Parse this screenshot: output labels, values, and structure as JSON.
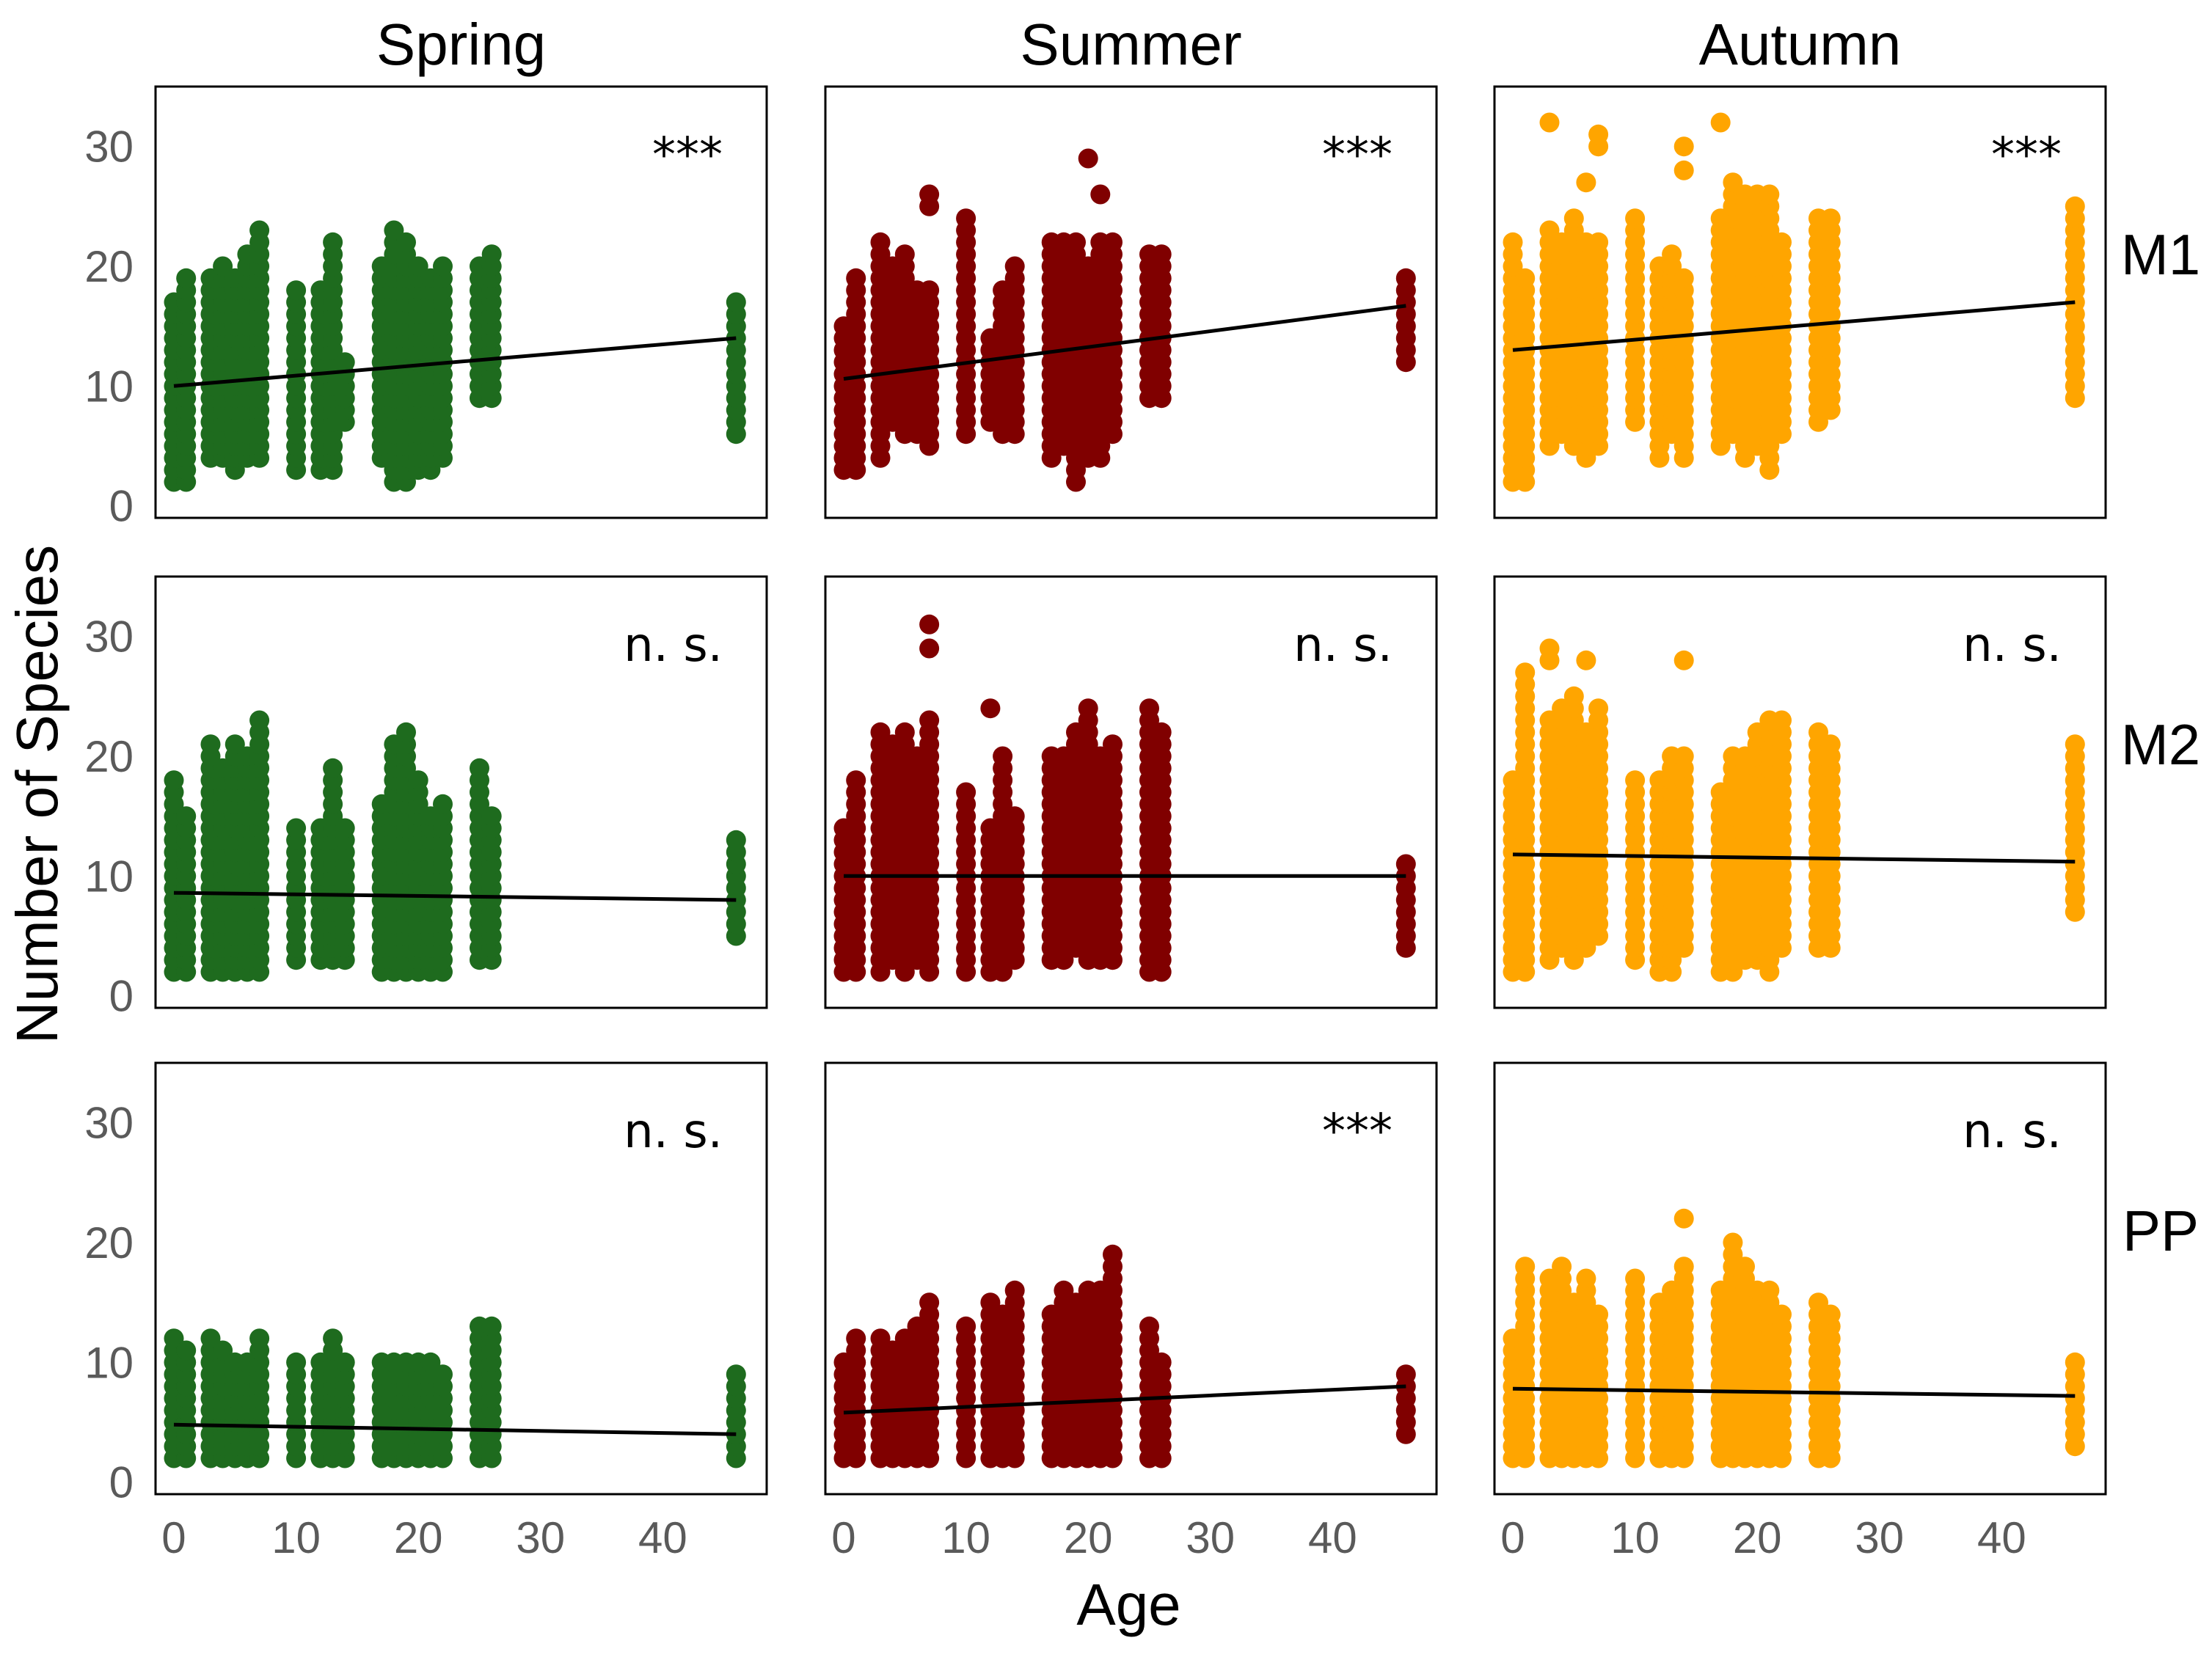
{
  "chart_data": {
    "type": "scatter",
    "title": "",
    "xlabel": "Age",
    "ylabel": "Number of Species",
    "xlim": [
      -1.5,
      48.5
    ],
    "ylim": [
      -1,
      35
    ],
    "x_ticks": [
      0,
      10,
      20,
      30,
      40
    ],
    "y_ticks": [
      0,
      10,
      20,
      30
    ],
    "columns": [
      {
        "name": "Spring",
        "color": "#1e6b1e"
      },
      {
        "name": "Summer",
        "color": "#800000"
      },
      {
        "name": "Autumn",
        "color": "#ffa500"
      }
    ],
    "rows": [
      "M1",
      "M2",
      "PP"
    ],
    "point_ages": [
      0,
      1,
      3,
      4,
      5,
      6,
      7,
      10,
      12,
      13,
      14,
      17,
      18,
      19,
      20,
      21,
      22,
      25,
      26,
      46
    ],
    "panels": [
      {
        "column": "Spring",
        "row": "M1",
        "significance": "***",
        "trend": [
          {
            "x": 0,
            "y": 10.0
          },
          {
            "x": 46,
            "y": 14.0
          }
        ],
        "ranges": [
          [
            2,
            17
          ],
          [
            2,
            19
          ],
          [
            4,
            19
          ],
          [
            4,
            20
          ],
          [
            3,
            19
          ],
          [
            4,
            21
          ],
          [
            4,
            23
          ],
          [
            3,
            18
          ],
          [
            3,
            18
          ],
          [
            3,
            22
          ],
          [
            7,
            12
          ],
          [
            4,
            20
          ],
          [
            2,
            23
          ],
          [
            2,
            22
          ],
          [
            3,
            20
          ],
          [
            3,
            19
          ],
          [
            4,
            20
          ],
          [
            9,
            20
          ],
          [
            9,
            21
          ],
          [
            6,
            17
          ]
        ],
        "outliers": []
      },
      {
        "column": "Summer",
        "row": "M1",
        "significance": "***",
        "trend": [
          {
            "x": 0,
            "y": 10.6
          },
          {
            "x": 46,
            "y": 16.7
          }
        ],
        "ranges": [
          [
            3,
            15
          ],
          [
            3,
            19
          ],
          [
            4,
            22
          ],
          [
            7,
            20
          ],
          [
            6,
            21
          ],
          [
            6,
            18
          ],
          [
            5,
            18
          ],
          [
            6,
            24
          ],
          [
            7,
            14
          ],
          [
            6,
            18
          ],
          [
            6,
            20
          ],
          [
            4,
            22
          ],
          [
            5,
            22
          ],
          [
            2,
            22
          ],
          [
            4,
            20
          ],
          [
            4,
            22
          ],
          [
            6,
            22
          ],
          [
            9,
            21
          ],
          [
            9,
            21
          ],
          [
            12,
            19
          ]
        ],
        "outliers": [
          {
            "x": 7,
            "y": 25
          },
          {
            "x": 7,
            "y": 26
          },
          {
            "x": 20,
            "y": 29
          },
          {
            "x": 21,
            "y": 26
          }
        ]
      },
      {
        "column": "Autumn",
        "row": "M1",
        "significance": "***",
        "trend": [
          {
            "x": 0,
            "y": 13.0
          },
          {
            "x": 46,
            "y": 17.0
          }
        ],
        "ranges": [
          [
            2,
            22
          ],
          [
            2,
            19
          ],
          [
            5,
            23
          ],
          [
            6,
            22
          ],
          [
            5,
            24
          ],
          [
            4,
            22
          ],
          [
            5,
            22
          ],
          [
            7,
            24
          ],
          [
            4,
            20
          ],
          [
            6,
            21
          ],
          [
            4,
            19
          ],
          [
            5,
            24
          ],
          [
            6,
            27
          ],
          [
            4,
            26
          ],
          [
            5,
            26
          ],
          [
            3,
            26
          ],
          [
            6,
            22
          ],
          [
            7,
            24
          ],
          [
            8,
            24
          ],
          [
            9,
            25
          ]
        ],
        "outliers": [
          {
            "x": 3,
            "y": 32
          },
          {
            "x": 6,
            "y": 27
          },
          {
            "x": 7,
            "y": 30
          },
          {
            "x": 7,
            "y": 31
          },
          {
            "x": 14,
            "y": 30
          },
          {
            "x": 14,
            "y": 28
          },
          {
            "x": 17,
            "y": 32
          }
        ]
      },
      {
        "column": "Spring",
        "row": "M2",
        "significance": "n. s.",
        "trend": [
          {
            "x": 0,
            "y": 8.6
          },
          {
            "x": 46,
            "y": 8.0
          }
        ],
        "ranges": [
          [
            2,
            18
          ],
          [
            2,
            15
          ],
          [
            2,
            21
          ],
          [
            2,
            19
          ],
          [
            2,
            21
          ],
          [
            2,
            20
          ],
          [
            2,
            22
          ],
          [
            3,
            14
          ],
          [
            3,
            14
          ],
          [
            3,
            19
          ],
          [
            3,
            14
          ],
          [
            2,
            16
          ],
          [
            2,
            21
          ],
          [
            2,
            22
          ],
          [
            2,
            18
          ],
          [
            2,
            15
          ],
          [
            2,
            16
          ],
          [
            3,
            19
          ],
          [
            3,
            15
          ],
          [
            5,
            13
          ]
        ],
        "outliers": [
          {
            "x": 7,
            "y": 23
          }
        ]
      },
      {
        "column": "Summer",
        "row": "M2",
        "significance": "n. s.",
        "trend": [
          {
            "x": 0,
            "y": 10.0
          },
          {
            "x": 46,
            "y": 10.0
          }
        ],
        "ranges": [
          [
            2,
            14
          ],
          [
            2,
            18
          ],
          [
            2,
            22
          ],
          [
            3,
            21
          ],
          [
            2,
            22
          ],
          [
            3,
            20
          ],
          [
            2,
            23
          ],
          [
            2,
            17
          ],
          [
            2,
            14
          ],
          [
            2,
            20
          ],
          [
            3,
            15
          ],
          [
            3,
            20
          ],
          [
            3,
            20
          ],
          [
            4,
            22
          ],
          [
            3,
            24
          ],
          [
            3,
            20
          ],
          [
            3,
            21
          ],
          [
            2,
            24
          ],
          [
            2,
            22
          ],
          [
            4,
            11
          ]
        ],
        "outliers": [
          {
            "x": 7,
            "y": 31
          },
          {
            "x": 7,
            "y": 29
          },
          {
            "x": 12,
            "y": 24
          }
        ]
      },
      {
        "column": "Autumn",
        "row": "M2",
        "significance": "n. s.",
        "trend": [
          {
            "x": 0,
            "y": 11.8
          },
          {
            "x": 46,
            "y": 11.2
          }
        ],
        "ranges": [
          [
            2,
            18
          ],
          [
            2,
            27
          ],
          [
            3,
            23
          ],
          [
            4,
            24
          ],
          [
            3,
            25
          ],
          [
            4,
            22
          ],
          [
            5,
            24
          ],
          [
            3,
            18
          ],
          [
            2,
            18
          ],
          [
            2,
            20
          ],
          [
            4,
            20
          ],
          [
            2,
            17
          ],
          [
            2,
            20
          ],
          [
            3,
            20
          ],
          [
            3,
            22
          ],
          [
            2,
            23
          ],
          [
            4,
            23
          ],
          [
            4,
            22
          ],
          [
            4,
            21
          ],
          [
            7,
            21
          ]
        ],
        "outliers": [
          {
            "x": 3,
            "y": 29
          },
          {
            "x": 3,
            "y": 28
          },
          {
            "x": 6,
            "y": 28
          },
          {
            "x": 14,
            "y": 28
          }
        ]
      },
      {
        "column": "Spring",
        "row": "PP",
        "significance": "n. s.",
        "trend": [
          {
            "x": 0,
            "y": 4.8
          },
          {
            "x": 46,
            "y": 4.0
          }
        ],
        "ranges": [
          [
            2,
            12
          ],
          [
            2,
            11
          ],
          [
            2,
            12
          ],
          [
            2,
            11
          ],
          [
            2,
            10
          ],
          [
            2,
            10
          ],
          [
            2,
            12
          ],
          [
            2,
            10
          ],
          [
            2,
            10
          ],
          [
            2,
            12
          ],
          [
            2,
            10
          ],
          [
            2,
            10
          ],
          [
            2,
            10
          ],
          [
            2,
            10
          ],
          [
            2,
            10
          ],
          [
            2,
            10
          ],
          [
            2,
            9
          ],
          [
            2,
            13
          ],
          [
            2,
            13
          ],
          [
            2,
            9
          ]
        ],
        "outliers": []
      },
      {
        "column": "Summer",
        "row": "PP",
        "significance": "***",
        "trend": [
          {
            "x": 0,
            "y": 5.8
          },
          {
            "x": 46,
            "y": 8.0
          }
        ],
        "ranges": [
          [
            2,
            10
          ],
          [
            2,
            12
          ],
          [
            2,
            12
          ],
          [
            2,
            11
          ],
          [
            2,
            12
          ],
          [
            2,
            13
          ],
          [
            2,
            15
          ],
          [
            2,
            13
          ],
          [
            2,
            15
          ],
          [
            2,
            14
          ],
          [
            2,
            16
          ],
          [
            2,
            14
          ],
          [
            2,
            16
          ],
          [
            2,
            15
          ],
          [
            2,
            16
          ],
          [
            2,
            16
          ],
          [
            2,
            17
          ],
          [
            2,
            13
          ],
          [
            2,
            10
          ],
          [
            4,
            9
          ]
        ],
        "outliers": [
          {
            "x": 22,
            "y": 19
          },
          {
            "x": 22,
            "y": 18
          }
        ]
      },
      {
        "column": "Autumn",
        "row": "PP",
        "significance": "n. s.",
        "trend": [
          {
            "x": 0,
            "y": 7.8
          },
          {
            "x": 46,
            "y": 7.2
          }
        ],
        "ranges": [
          [
            2,
            12
          ],
          [
            2,
            18
          ],
          [
            2,
            17
          ],
          [
            2,
            18
          ],
          [
            2,
            15
          ],
          [
            2,
            17
          ],
          [
            2,
            14
          ],
          [
            2,
            17
          ],
          [
            2,
            15
          ],
          [
            2,
            16
          ],
          [
            2,
            18
          ],
          [
            2,
            16
          ],
          [
            2,
            20
          ],
          [
            2,
            18
          ],
          [
            2,
            16
          ],
          [
            2,
            16
          ],
          [
            2,
            14
          ],
          [
            2,
            15
          ],
          [
            2,
            14
          ],
          [
            3,
            10
          ]
        ],
        "outliers": [
          {
            "x": 14,
            "y": 22
          }
        ]
      }
    ]
  }
}
